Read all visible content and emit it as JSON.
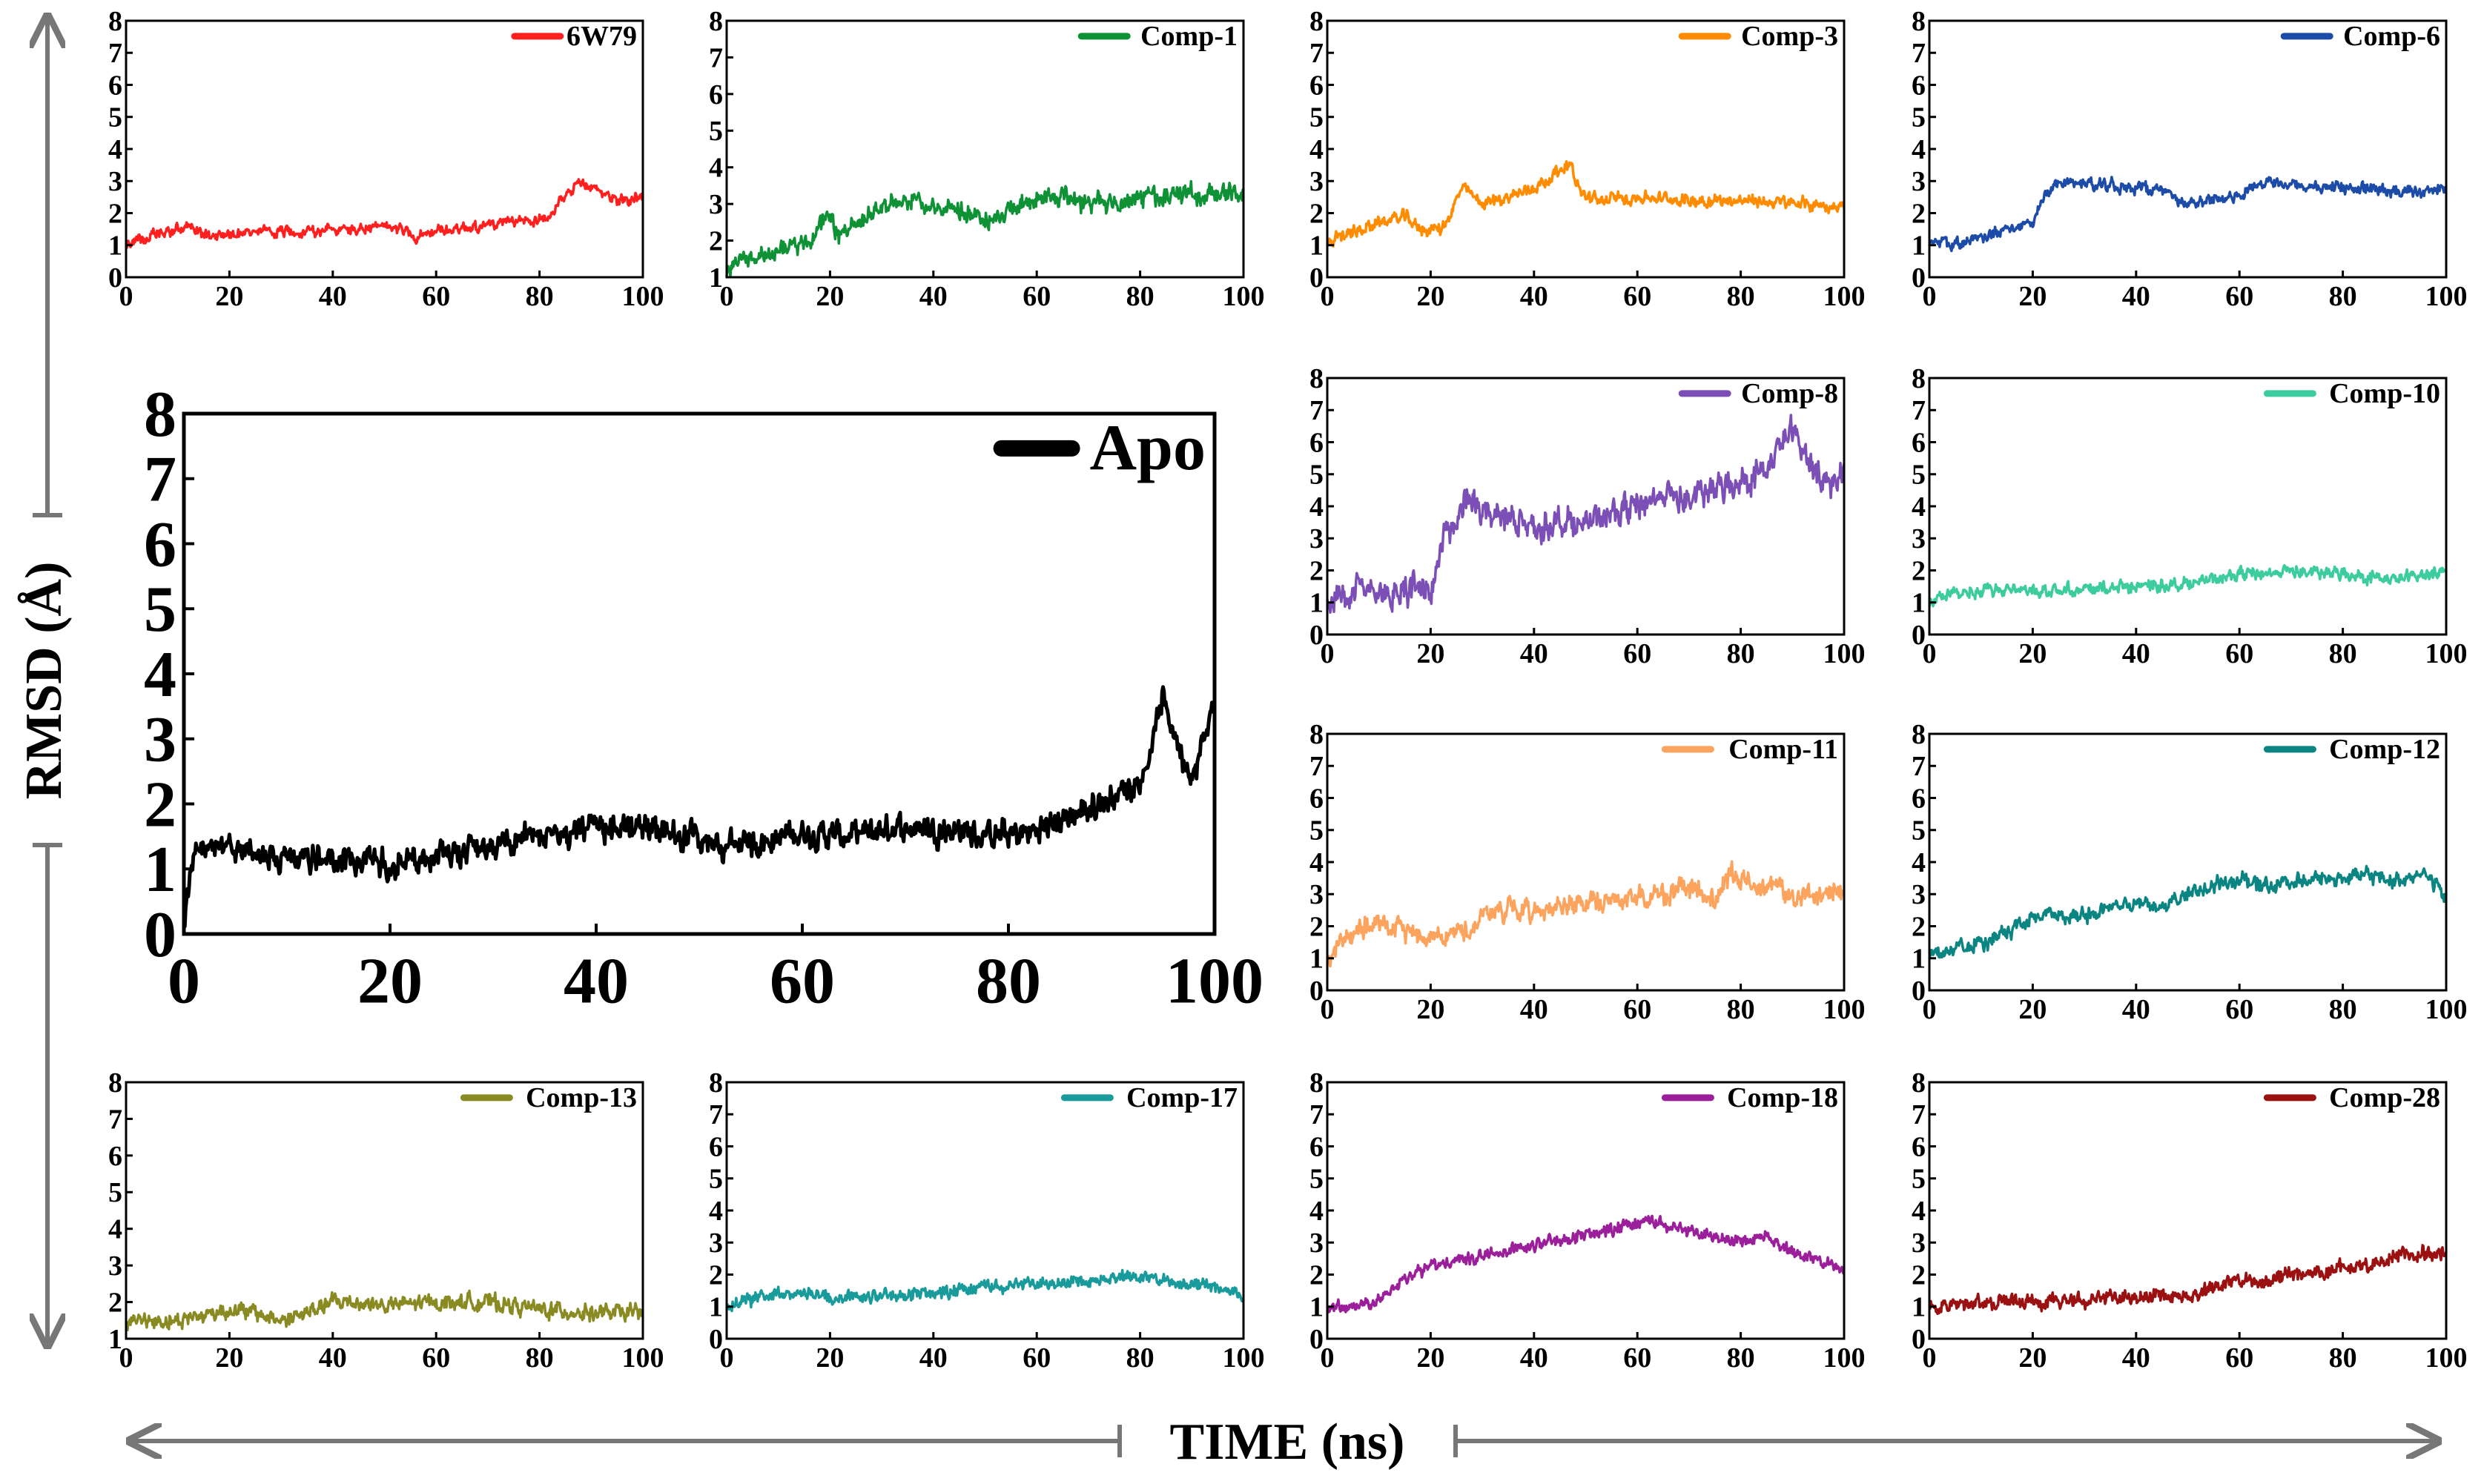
{
  "figure": {
    "y_axis_label": "RMSD (Å)",
    "x_axis_label": "TIME (ns)"
  },
  "chart_data": [
    {
      "id": "6w79",
      "type": "line",
      "series_name": "6W79",
      "color": "#ff1f1f",
      "x_range": [
        0,
        100
      ],
      "ylim": [
        0,
        8
      ],
      "xticks": [
        0,
        20,
        40,
        60,
        80,
        100
      ],
      "yticks": [
        0,
        1,
        2,
        3,
        4,
        5,
        6,
        7,
        8
      ],
      "profile": [
        [
          0,
          1.0
        ],
        [
          3,
          1.2
        ],
        [
          8,
          1.4
        ],
        [
          12,
          1.6
        ],
        [
          15,
          1.3
        ],
        [
          25,
          1.4
        ],
        [
          35,
          1.45
        ],
        [
          45,
          1.5
        ],
        [
          53,
          1.6
        ],
        [
          56,
          1.25
        ],
        [
          58,
          1.35
        ],
        [
          65,
          1.55
        ],
        [
          75,
          1.7
        ],
        [
          82,
          1.9
        ],
        [
          84,
          2.3
        ],
        [
          87,
          2.9
        ],
        [
          90,
          2.8
        ],
        [
          93,
          2.6
        ],
        [
          95,
          2.4
        ],
        [
          100,
          2.5
        ]
      ],
      "noise": 0.13
    },
    {
      "id": "comp1",
      "type": "line",
      "series_name": "Comp-1",
      "color": "#0f9136",
      "x_range": [
        0,
        100
      ],
      "ylim": [
        1,
        8
      ],
      "xticks": [
        0,
        20,
        40,
        60,
        80,
        100
      ],
      "yticks": [
        1,
        2,
        3,
        4,
        5,
        6,
        7,
        8
      ],
      "profile": [
        [
          0,
          1.2
        ],
        [
          3,
          1.5
        ],
        [
          8,
          1.8
        ],
        [
          15,
          2.0
        ],
        [
          18,
          2.3
        ],
        [
          20,
          2.6
        ],
        [
          22,
          2.1
        ],
        [
          25,
          2.4
        ],
        [
          30,
          2.9
        ],
        [
          35,
          3.1
        ],
        [
          40,
          3.0
        ],
        [
          45,
          2.9
        ],
        [
          50,
          2.6
        ],
        [
          55,
          2.8
        ],
        [
          58,
          3.1
        ],
        [
          65,
          3.2
        ],
        [
          70,
          3.0
        ],
        [
          75,
          3.1
        ],
        [
          85,
          3.2
        ],
        [
          95,
          3.3
        ],
        [
          100,
          3.2
        ]
      ],
      "noise": 0.2
    },
    {
      "id": "comp3",
      "type": "line",
      "series_name": "Comp-3",
      "color": "#ff8c00",
      "x_range": [
        0,
        100
      ],
      "ylim": [
        0,
        8
      ],
      "xticks": [
        0,
        20,
        40,
        60,
        80,
        100
      ],
      "yticks": [
        0,
        1,
        2,
        3,
        4,
        5,
        6,
        7,
        8
      ],
      "profile": [
        [
          0,
          1.1
        ],
        [
          5,
          1.4
        ],
        [
          10,
          1.7
        ],
        [
          15,
          1.9
        ],
        [
          18,
          1.5
        ],
        [
          22,
          1.5
        ],
        [
          24,
          2.0
        ],
        [
          26,
          2.8
        ],
        [
          30,
          2.3
        ],
        [
          35,
          2.5
        ],
        [
          40,
          2.8
        ],
        [
          44,
          3.2
        ],
        [
          47,
          3.6
        ],
        [
          49,
          2.6
        ],
        [
          52,
          2.4
        ],
        [
          60,
          2.5
        ],
        [
          70,
          2.4
        ],
        [
          80,
          2.4
        ],
        [
          90,
          2.3
        ],
        [
          100,
          2.2
        ]
      ],
      "noise": 0.15
    },
    {
      "id": "comp6",
      "type": "line",
      "series_name": "Comp-6",
      "color": "#1c4ba8",
      "x_range": [
        0,
        100
      ],
      "ylim": [
        0,
        8
      ],
      "xticks": [
        0,
        20,
        40,
        60,
        80,
        100
      ],
      "yticks": [
        0,
        1,
        2,
        3,
        4,
        5,
        6,
        7,
        8
      ],
      "profile": [
        [
          0,
          1.0
        ],
        [
          5,
          1.1
        ],
        [
          10,
          1.2
        ],
        [
          17,
          1.6
        ],
        [
          20,
          1.7
        ],
        [
          22,
          2.5
        ],
        [
          25,
          3.0
        ],
        [
          30,
          2.9
        ],
        [
          40,
          2.8
        ],
        [
          45,
          2.7
        ],
        [
          50,
          2.3
        ],
        [
          55,
          2.4
        ],
        [
          60,
          2.6
        ],
        [
          65,
          3.0
        ],
        [
          70,
          2.9
        ],
        [
          80,
          2.8
        ],
        [
          90,
          2.7
        ],
        [
          100,
          2.8
        ]
      ],
      "noise": 0.14
    },
    {
      "id": "comp8",
      "type": "line",
      "series_name": "Comp-8",
      "color": "#7b4fb5",
      "x_range": [
        0,
        100
      ],
      "ylim": [
        0,
        8
      ],
      "xticks": [
        0,
        20,
        40,
        60,
        80,
        100
      ],
      "yticks": [
        0,
        1,
        2,
        3,
        4,
        5,
        6,
        7,
        8
      ],
      "profile": [
        [
          0,
          0.8
        ],
        [
          3,
          1.2
        ],
        [
          7,
          1.5
        ],
        [
          10,
          1.3
        ],
        [
          15,
          1.3
        ],
        [
          20,
          1.4
        ],
        [
          22,
          3.0
        ],
        [
          25,
          3.5
        ],
        [
          27,
          4.5
        ],
        [
          30,
          3.8
        ],
        [
          35,
          3.7
        ],
        [
          40,
          3.3
        ],
        [
          45,
          3.6
        ],
        [
          50,
          3.4
        ],
        [
          55,
          3.8
        ],
        [
          60,
          4.0
        ],
        [
          65,
          4.4
        ],
        [
          70,
          4.2
        ],
        [
          75,
          4.5
        ],
        [
          80,
          4.8
        ],
        [
          85,
          5.1
        ],
        [
          88,
          6.0
        ],
        [
          90,
          6.3
        ],
        [
          93,
          5.5
        ],
        [
          96,
          4.8
        ],
        [
          100,
          4.9
        ]
      ],
      "noise": 0.35
    },
    {
      "id": "comp10",
      "type": "line",
      "series_name": "Comp-10",
      "color": "#3dcc9e",
      "x_range": [
        0,
        100
      ],
      "ylim": [
        0,
        8
      ],
      "xticks": [
        0,
        20,
        40,
        60,
        80,
        100
      ],
      "yticks": [
        0,
        1,
        2,
        3,
        4,
        5,
        6,
        7,
        8
      ],
      "profile": [
        [
          0,
          1.0
        ],
        [
          5,
          1.3
        ],
        [
          10,
          1.4
        ],
        [
          20,
          1.4
        ],
        [
          30,
          1.4
        ],
        [
          40,
          1.5
        ],
        [
          50,
          1.6
        ],
        [
          55,
          1.7
        ],
        [
          60,
          1.9
        ],
        [
          65,
          1.9
        ],
        [
          70,
          2.0
        ],
        [
          75,
          1.9
        ],
        [
          80,
          1.9
        ],
        [
          90,
          1.7
        ],
        [
          100,
          2.0
        ]
      ],
      "noise": 0.15
    },
    {
      "id": "comp11",
      "type": "line",
      "series_name": "Comp-11",
      "color": "#fca35d",
      "x_range": [
        0,
        100
      ],
      "ylim": [
        0,
        8
      ],
      "xticks": [
        0,
        20,
        40,
        60,
        80,
        100
      ],
      "yticks": [
        0,
        1,
        2,
        3,
        4,
        5,
        6,
        7,
        8
      ],
      "profile": [
        [
          0,
          0.8
        ],
        [
          3,
          1.6
        ],
        [
          6,
          2.0
        ],
        [
          10,
          2.0
        ],
        [
          15,
          1.9
        ],
        [
          20,
          1.7
        ],
        [
          25,
          1.8
        ],
        [
          28,
          1.9
        ],
        [
          30,
          2.4
        ],
        [
          35,
          2.5
        ],
        [
          40,
          2.5
        ],
        [
          50,
          2.7
        ],
        [
          60,
          2.9
        ],
        [
          65,
          3.0
        ],
        [
          70,
          3.2
        ],
        [
          75,
          2.8
        ],
        [
          78,
          3.6
        ],
        [
          82,
          3.3
        ],
        [
          86,
          3.4
        ],
        [
          90,
          2.9
        ],
        [
          95,
          2.9
        ],
        [
          100,
          3.2
        ]
      ],
      "noise": 0.25
    },
    {
      "id": "comp12",
      "type": "line",
      "series_name": "Comp-12",
      "color": "#0b8582",
      "x_range": [
        0,
        100
      ],
      "ylim": [
        0,
        8
      ],
      "xticks": [
        0,
        20,
        40,
        60,
        80,
        100
      ],
      "yticks": [
        0,
        1,
        2,
        3,
        4,
        5,
        6,
        7,
        8
      ],
      "profile": [
        [
          0,
          1.0
        ],
        [
          5,
          1.3
        ],
        [
          10,
          1.5
        ],
        [
          15,
          1.8
        ],
        [
          20,
          2.3
        ],
        [
          25,
          2.4
        ],
        [
          30,
          2.3
        ],
        [
          35,
          2.6
        ],
        [
          40,
          2.7
        ],
        [
          45,
          2.6
        ],
        [
          50,
          3.0
        ],
        [
          55,
          3.3
        ],
        [
          60,
          3.4
        ],
        [
          65,
          3.3
        ],
        [
          70,
          3.4
        ],
        [
          75,
          3.5
        ],
        [
          80,
          3.5
        ],
        [
          85,
          3.6
        ],
        [
          90,
          3.4
        ],
        [
          95,
          3.7
        ],
        [
          98,
          3.3
        ],
        [
          100,
          2.8
        ]
      ],
      "noise": 0.18
    },
    {
      "id": "apo",
      "type": "line",
      "series_name": "Apo",
      "color": "#000000",
      "x_range": [
        0,
        100
      ],
      "ylim": [
        0,
        8
      ],
      "xticks": [
        0,
        20,
        40,
        60,
        80,
        100
      ],
      "yticks": [
        0,
        1,
        2,
        3,
        4,
        5,
        6,
        7,
        8
      ],
      "profile": [
        [
          0,
          0.2
        ],
        [
          1,
          1.2
        ],
        [
          5,
          1.3
        ],
        [
          10,
          1.15
        ],
        [
          20,
          1.1
        ],
        [
          25,
          1.2
        ],
        [
          30,
          1.35
        ],
        [
          35,
          1.55
        ],
        [
          40,
          1.6
        ],
        [
          45,
          1.65
        ],
        [
          48,
          1.5
        ],
        [
          52,
          1.35
        ],
        [
          55,
          1.4
        ],
        [
          60,
          1.55
        ],
        [
          65,
          1.5
        ],
        [
          70,
          1.65
        ],
        [
          75,
          1.6
        ],
        [
          78,
          1.5
        ],
        [
          82,
          1.55
        ],
        [
          86,
          1.8
        ],
        [
          90,
          2.1
        ],
        [
          93,
          2.4
        ],
        [
          95,
          3.6
        ],
        [
          97,
          2.7
        ],
        [
          98,
          2.4
        ],
        [
          100,
          3.6
        ]
      ],
      "noise": 0.16
    },
    {
      "id": "comp13",
      "type": "line",
      "series_name": "Comp-13",
      "color": "#8a8a22",
      "x_range": [
        0,
        100
      ],
      "ylim": [
        1,
        8
      ],
      "xticks": [
        0,
        20,
        40,
        60,
        80,
        100
      ],
      "yticks": [
        1,
        2,
        3,
        4,
        5,
        6,
        7,
        8
      ],
      "profile": [
        [
          0,
          1.5
        ],
        [
          10,
          1.5
        ],
        [
          20,
          1.8
        ],
        [
          25,
          1.7
        ],
        [
          30,
          1.5
        ],
        [
          35,
          1.7
        ],
        [
          40,
          2.0
        ],
        [
          45,
          2.0
        ],
        [
          50,
          1.9
        ],
        [
          60,
          2.0
        ],
        [
          70,
          2.0
        ],
        [
          80,
          1.8
        ],
        [
          90,
          1.7
        ],
        [
          100,
          1.7
        ]
      ],
      "noise": 0.17
    },
    {
      "id": "comp17",
      "type": "line",
      "series_name": "Comp-17",
      "color": "#1a9b9b",
      "x_range": [
        0,
        100
      ],
      "ylim": [
        0,
        8
      ],
      "xticks": [
        0,
        20,
        40,
        60,
        80,
        100
      ],
      "yticks": [
        0,
        1,
        2,
        3,
        4,
        5,
        6,
        7,
        8
      ],
      "profile": [
        [
          0,
          1.0
        ],
        [
          5,
          1.2
        ],
        [
          10,
          1.4
        ],
        [
          15,
          1.5
        ],
        [
          20,
          1.3
        ],
        [
          30,
          1.3
        ],
        [
          40,
          1.4
        ],
        [
          50,
          1.6
        ],
        [
          60,
          1.7
        ],
        [
          70,
          1.8
        ],
        [
          75,
          2.0
        ],
        [
          80,
          1.9
        ],
        [
          90,
          1.7
        ],
        [
          95,
          1.6
        ],
        [
          100,
          1.4
        ]
      ],
      "noise": 0.15
    },
    {
      "id": "comp18",
      "type": "line",
      "series_name": "Comp-18",
      "color": "#9b1f9b",
      "x_range": [
        0,
        100
      ],
      "ylim": [
        0,
        8
      ],
      "xticks": [
        0,
        20,
        40,
        60,
        80,
        100
      ],
      "yticks": [
        0,
        1,
        2,
        3,
        4,
        5,
        6,
        7,
        8
      ],
      "profile": [
        [
          0,
          0.9
        ],
        [
          5,
          1.0
        ],
        [
          10,
          1.2
        ],
        [
          15,
          1.8
        ],
        [
          20,
          2.3
        ],
        [
          30,
          2.6
        ],
        [
          40,
          2.9
        ],
        [
          50,
          3.2
        ],
        [
          55,
          3.4
        ],
        [
          60,
          3.6
        ],
        [
          65,
          3.6
        ],
        [
          70,
          3.3
        ],
        [
          75,
          3.2
        ],
        [
          80,
          3.0
        ],
        [
          85,
          3.3
        ],
        [
          90,
          2.7
        ],
        [
          95,
          2.4
        ],
        [
          100,
          2.2
        ]
      ],
      "noise": 0.15
    },
    {
      "id": "comp28",
      "type": "line",
      "series_name": "Comp-28",
      "color": "#9b1010",
      "x_range": [
        0,
        100
      ],
      "ylim": [
        0,
        8
      ],
      "xticks": [
        0,
        20,
        40,
        60,
        80,
        100
      ],
      "yticks": [
        0,
        1,
        2,
        3,
        4,
        5,
        6,
        7,
        8
      ],
      "profile": [
        [
          0,
          1.0
        ],
        [
          10,
          1.1
        ],
        [
          20,
          1.2
        ],
        [
          30,
          1.2
        ],
        [
          40,
          1.3
        ],
        [
          50,
          1.4
        ],
        [
          55,
          1.6
        ],
        [
          60,
          1.8
        ],
        [
          65,
          1.8
        ],
        [
          70,
          2.0
        ],
        [
          75,
          2.1
        ],
        [
          80,
          2.2
        ],
        [
          85,
          2.3
        ],
        [
          90,
          2.6
        ],
        [
          95,
          2.7
        ],
        [
          100,
          2.7
        ]
      ],
      "noise": 0.18
    }
  ]
}
